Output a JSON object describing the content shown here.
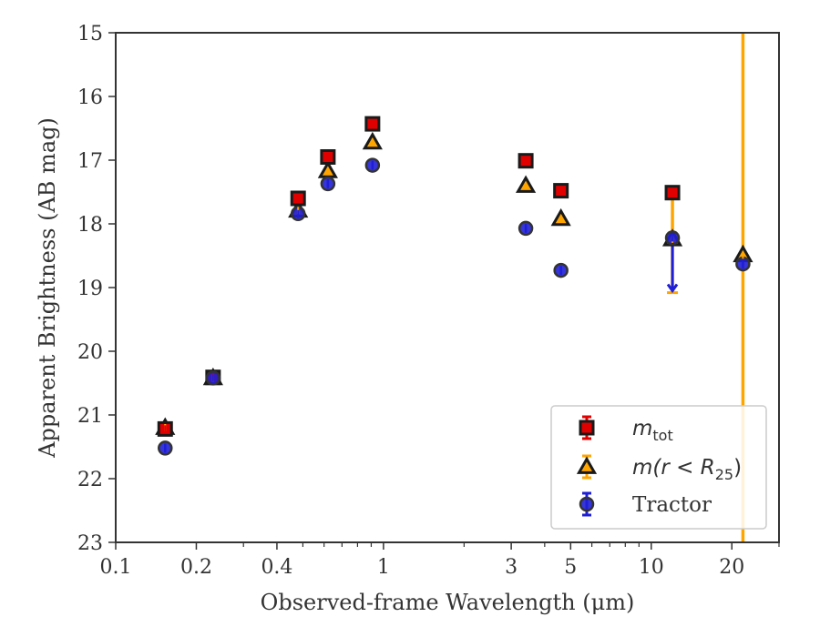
{
  "chart_data": {
    "type": "scatter",
    "title": "",
    "xlabel": "Observed-frame Wavelength (μm)",
    "ylabel": "Apparent Brightness (AB mag)",
    "xscale": "log",
    "xlim": [
      0.1,
      30
    ],
    "ylim": [
      23,
      15
    ],
    "y_inverted": true,
    "x_ticks": [
      {
        "value": 0.1,
        "label": "0.1"
      },
      {
        "value": 0.2,
        "label": "0.2"
      },
      {
        "value": 0.4,
        "label": "0.4"
      },
      {
        "value": 1,
        "label": "1"
      },
      {
        "value": 3,
        "label": "3"
      },
      {
        "value": 5,
        "label": "5"
      },
      {
        "value": 10,
        "label": "10"
      },
      {
        "value": 20,
        "label": "20"
      }
    ],
    "y_ticks": [
      15,
      16,
      17,
      18,
      19,
      20,
      21,
      22,
      23
    ],
    "grid": false,
    "legend_position": "bottom-right",
    "series": [
      {
        "key": "mtot",
        "marker": "square",
        "color": "#e00000",
        "error_color": "#e00000",
        "legend_main": "m",
        "legend_sub": "tot",
        "points": [
          {
            "x": 0.153,
            "y": 21.22
          },
          {
            "x": 0.231,
            "y": 20.41
          },
          {
            "x": 0.48,
            "y": 17.6
          },
          {
            "x": 0.62,
            "y": 16.95
          },
          {
            "x": 0.91,
            "y": 16.43
          },
          {
            "x": 3.4,
            "y": 17.01
          },
          {
            "x": 4.6,
            "y": 17.48
          },
          {
            "x": 12.0,
            "y": 17.51
          }
        ]
      },
      {
        "key": "mr25",
        "marker": "triangle",
        "color": "#ffa500",
        "error_color": "#ffa500",
        "legend_main": "m(r < R",
        "legend_sub": "25",
        "legend_tail": ")",
        "points": [
          {
            "x": 0.153,
            "y": 21.2
          },
          {
            "x": 0.231,
            "y": 20.42
          },
          {
            "x": 0.48,
            "y": 17.79
          },
          {
            "x": 0.62,
            "y": 17.17
          },
          {
            "x": 0.91,
            "y": 16.72
          },
          {
            "x": 3.4,
            "y": 17.4
          },
          {
            "x": 4.6,
            "y": 17.92
          },
          {
            "x": 12.0,
            "y": 18.24,
            "err_low": 17.4,
            "err_high": 19.08
          },
          {
            "x": 22.0,
            "y": 18.49,
            "err_low": 15.0,
            "err_high": 23.0
          }
        ]
      },
      {
        "key": "tractor",
        "marker": "circle",
        "color": "#1f1fd6",
        "error_color": "#1f1fd6",
        "legend_main": "Tractor",
        "points": [
          {
            "x": 0.153,
            "y": 21.52
          },
          {
            "x": 0.231,
            "y": 20.42
          },
          {
            "x": 0.48,
            "y": 17.84
          },
          {
            "x": 0.62,
            "y": 17.37
          },
          {
            "x": 0.91,
            "y": 17.08
          },
          {
            "x": 3.4,
            "y": 18.07
          },
          {
            "x": 4.6,
            "y": 18.73
          },
          {
            "x": 12.0,
            "y": 18.22,
            "upper_limit_to": 19.05
          },
          {
            "x": 22.0,
            "y": 18.63
          }
        ]
      }
    ]
  }
}
